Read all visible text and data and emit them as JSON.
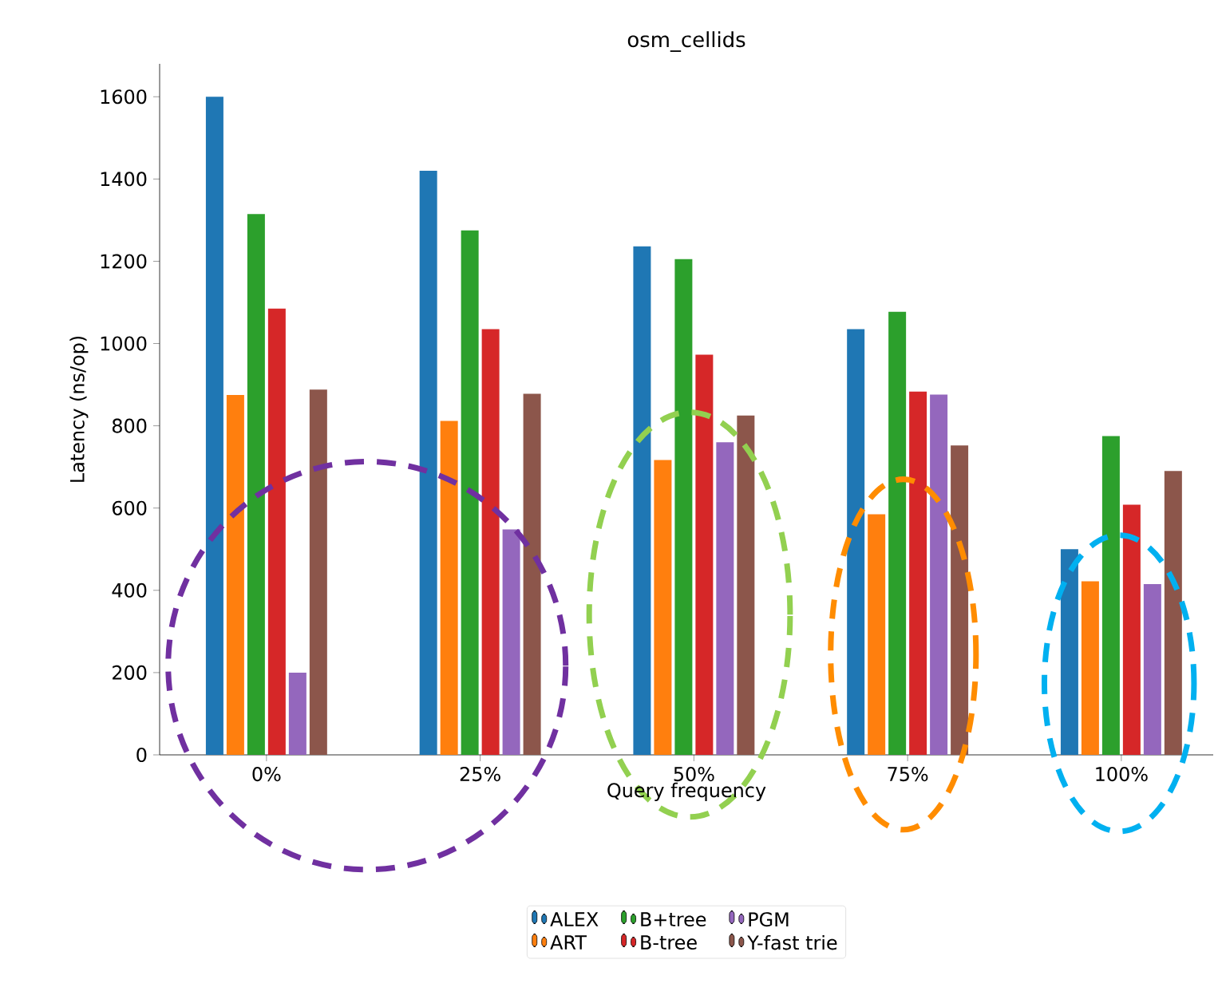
{
  "chart_data": {
    "type": "bar",
    "title": "osm_cellids",
    "xlabel": "Query frequency",
    "ylabel": "Latency (ns/op)",
    "categories": [
      "0%",
      "25%",
      "50%",
      "75%",
      "100%"
    ],
    "series": [
      {
        "name": "ALEX",
        "color": "#1f77b4",
        "values": [
          1600,
          1420,
          1236,
          1035,
          500
        ]
      },
      {
        "name": "ART",
        "color": "#ff7f0e",
        "values": [
          875,
          812,
          717,
          585,
          422
        ]
      },
      {
        "name": "B+tree",
        "color": "#2ca02c",
        "values": [
          1315,
          1275,
          1205,
          1077,
          775
        ]
      },
      {
        "name": "B-tree",
        "color": "#d62728",
        "values": [
          1085,
          1035,
          973,
          883,
          608
        ]
      },
      {
        "name": "PGM",
        "color": "#9467bd",
        "values": [
          200,
          548,
          760,
          876,
          415
        ]
      },
      {
        "name": "Y-fast trie",
        "color": "#8c564b",
        "values": [
          888,
          878,
          825,
          752,
          690
        ]
      }
    ],
    "ylim": [
      0,
      1680
    ],
    "yticks": [
      0,
      200,
      400,
      600,
      800,
      1000,
      1200,
      1400,
      1600
    ],
    "legend": "bottom"
  }
}
